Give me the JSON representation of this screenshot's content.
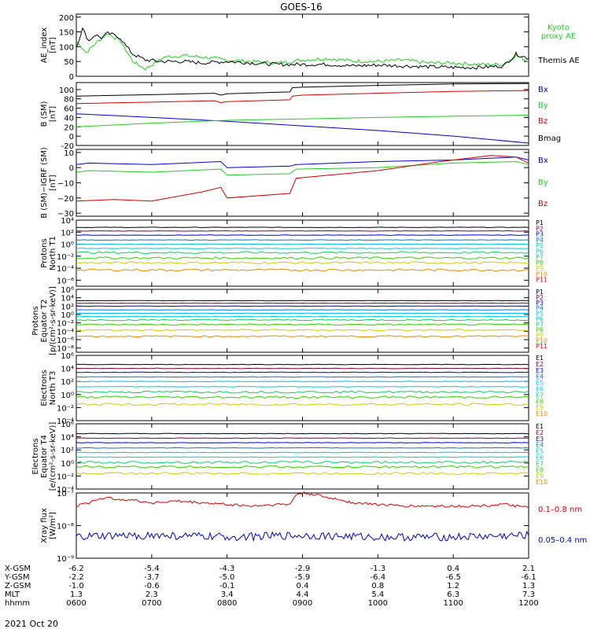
{
  "title": "GOES-16",
  "date_label": "2021 Oct 20",
  "colors": {
    "black": "#000000",
    "red": "#d00000",
    "green": "#22cc22",
    "blue": "#0000cc",
    "kyoto": "#22dd22",
    "xray_long": "#d00000",
    "xray_short": "#0000cc"
  },
  "channel_colors": {
    "P": [
      "#000000",
      "#800040",
      "#0000cc",
      "#0077dd",
      "#00bbee",
      "#00cccc",
      "#11cc66",
      "#33cc00",
      "#cccc00",
      "#ee8800",
      "#ff0000"
    ],
    "E": [
      "#000000",
      "#800040",
      "#0000cc",
      "#0077dd",
      "#00bbee",
      "#00cccc",
      "#11cc66",
      "#33cc00",
      "#cccc00",
      "#ee8800"
    ]
  },
  "bottom_axis": {
    "row_labels": [
      "X-GSM",
      "Y-GSM",
      "Z-GSM",
      "MLT",
      "hhmm"
    ],
    "columns": [
      {
        "t": 0,
        "values": [
          "-6.2",
          "-2.2",
          "-1.0",
          "1.3",
          "0600"
        ]
      },
      {
        "t": 60,
        "values": [
          "-5.4",
          "-3.7",
          "-0.6",
          "2.3",
          "0700"
        ]
      },
      {
        "t": 120,
        "values": [
          "-4.3",
          "-5.0",
          "-0.1",
          "3.4",
          "0800"
        ]
      },
      {
        "t": 180,
        "values": [
          "-2.9",
          "-5.9",
          "0.4",
          "4.4",
          "0900"
        ]
      },
      {
        "t": 240,
        "values": [
          "-1.3",
          "-6.4",
          "0.8",
          "5.4",
          "1000"
        ]
      },
      {
        "t": 300,
        "values": [
          "0.4",
          "-6.5",
          "1.2",
          "6.3",
          "1100"
        ]
      },
      {
        "t": 360,
        "values": [
          "2.1",
          "-6.1",
          "1.3",
          "7.3",
          "1200"
        ]
      }
    ]
  },
  "chart_data": [
    {
      "type": "line",
      "x_unit": "minutes since 0600 UT",
      "ylabel": [
        "AE_index",
        "[nT]"
      ],
      "log": false,
      "ylim": [
        0,
        210
      ],
      "yticks": [
        0,
        50,
        100,
        150,
        200
      ],
      "ytick_labels": [
        "0",
        "50",
        "100",
        "150",
        "200"
      ],
      "legend": [
        {
          "text": "Kyoto",
          "color": "green"
        },
        {
          "text": "proxy AE",
          "color": "green"
        },
        {
          "text": "Themis AE",
          "color": "black"
        }
      ],
      "series": [
        {
          "name": "Kyoto proxy AE",
          "color": "green",
          "x": [
            0,
            8,
            15,
            25,
            35,
            45,
            55,
            70,
            85,
            100,
            120,
            140,
            160,
            180,
            200,
            220,
            240,
            260,
            280,
            300,
            320,
            340,
            350,
            360
          ],
          "y": [
            120,
            80,
            110,
            145,
            120,
            50,
            25,
            65,
            70,
            65,
            55,
            50,
            45,
            55,
            60,
            52,
            50,
            55,
            45,
            45,
            40,
            40,
            70,
            50
          ]
        },
        {
          "name": "Themis AE",
          "color": "black",
          "x": [
            0,
            5,
            10,
            15,
            20,
            25,
            30,
            35,
            40,
            45,
            55,
            70,
            85,
            100,
            120,
            140,
            160,
            180,
            200,
            220,
            240,
            260,
            280,
            300,
            320,
            340,
            350,
            360
          ],
          "y": [
            100,
            160,
            120,
            140,
            130,
            145,
            140,
            130,
            100,
            75,
            55,
            50,
            50,
            45,
            50,
            45,
            40,
            40,
            40,
            35,
            38,
            35,
            32,
            30,
            30,
            35,
            75,
            60
          ]
        }
      ]
    },
    {
      "type": "line",
      "ylabel": [
        "B (SM)",
        "[nT]"
      ],
      "log": false,
      "ylim": [
        -20,
        115
      ],
      "yticks": [
        -20,
        0,
        20,
        40,
        60,
        80,
        100
      ],
      "ytick_labels": [
        "-20",
        "0",
        "20",
        "40",
        "60",
        "80",
        "100"
      ],
      "legend": [
        {
          "text": "Bx",
          "color": "blue"
        },
        {
          "text": "By",
          "color": "green"
        },
        {
          "text": "Bz",
          "color": "red"
        },
        {
          "text": "Bmag",
          "color": "black"
        }
      ],
      "series": [
        {
          "name": "Bx",
          "color": "blue",
          "x": [
            0,
            60,
            120,
            180,
            240,
            300,
            360
          ],
          "y": [
            48,
            40,
            32,
            22,
            12,
            0,
            -15
          ]
        },
        {
          "name": "By",
          "color": "green",
          "x": [
            0,
            60,
            120,
            180,
            240,
            300,
            360
          ],
          "y": [
            20,
            28,
            34,
            37,
            40,
            43,
            45
          ]
        },
        {
          "name": "Bz",
          "color": "red",
          "x": [
            0,
            60,
            110,
            115,
            120,
            170,
            172,
            180,
            240,
            300,
            360
          ],
          "y": [
            70,
            73,
            76,
            72,
            74,
            78,
            86,
            88,
            92,
            96,
            98
          ]
        },
        {
          "name": "Bmag",
          "color": "black",
          "x": [
            0,
            60,
            110,
            115,
            120,
            170,
            172,
            180,
            240,
            300,
            360
          ],
          "y": [
            86,
            89,
            92,
            88,
            91,
            95,
            104,
            105,
            109,
            112,
            113
          ]
        }
      ]
    },
    {
      "type": "line",
      "ylabel": [
        "B (SM)−IGRF (SM)",
        "[nT]"
      ],
      "log": false,
      "ylim": [
        -32,
        12
      ],
      "yticks": [
        -30,
        -20,
        -10,
        0,
        10
      ],
      "ytick_labels": [
        "−30",
        "−20",
        "−10",
        "0",
        "10"
      ],
      "legend": [
        {
          "text": "Bx",
          "color": "blue"
        },
        {
          "text": "By",
          "color": "green"
        },
        {
          "text": "Bz",
          "color": "red"
        }
      ],
      "series": [
        {
          "name": "Bx",
          "color": "blue",
          "x": [
            0,
            10,
            60,
            115,
            120,
            170,
            175,
            240,
            300,
            350,
            360
          ],
          "y": [
            2,
            3,
            2,
            4,
            0,
            1,
            2,
            4,
            5,
            7,
            5
          ]
        },
        {
          "name": "By",
          "color": "green",
          "x": [
            0,
            10,
            60,
            115,
            120,
            170,
            175,
            240,
            300,
            350,
            360
          ],
          "y": [
            -3,
            -2,
            -3,
            -1,
            -5,
            -4,
            -1,
            0,
            3,
            4,
            2
          ]
        },
        {
          "name": "Bz",
          "color": "red",
          "x": [
            0,
            30,
            60,
            100,
            115,
            120,
            170,
            175,
            240,
            290,
            330,
            350,
            360
          ],
          "y": [
            -22,
            -21,
            -22,
            -16,
            -13,
            -20,
            -17,
            -7,
            -2,
            4,
            8,
            7,
            3
          ]
        }
      ]
    },
    {
      "type": "line",
      "ylabel": [
        "Protons",
        "North T1"
      ],
      "log": true,
      "ylim": [
        -7,
        4
      ],
      "yticks": [
        -6,
        -4,
        -2,
        0,
        2,
        4
      ],
      "ytick_labels": [
        "10⁻⁶",
        "10⁻⁴",
        "10⁻²",
        "10⁰",
        "10²",
        "10⁴"
      ],
      "legend_codes": [
        "P1",
        "P2",
        "P3",
        "P4",
        "P5",
        "P6",
        "P7",
        "P8",
        "P9",
        "P10",
        "P11"
      ],
      "levels": [
        2.8,
        2.2,
        1.5,
        0.7,
        0.0,
        -0.7,
        -1.4,
        -2.3,
        -3.1,
        -4.3,
        -7
      ]
    },
    {
      "type": "line",
      "ylabel": [
        "Protons",
        "Equator T2",
        "[p/(cm²-s-sr-keV)]"
      ],
      "log": true,
      "ylim": [
        -9,
        6
      ],
      "yticks": [
        -8,
        -6,
        -4,
        -2,
        0,
        2,
        4,
        6
      ],
      "ytick_labels": [
        "10⁻⁸",
        "10⁻⁶",
        "10⁻⁴",
        "10⁻²",
        "10⁰",
        "10²",
        "10⁴",
        "10⁶"
      ],
      "legend_codes": [
        "P1",
        "P2",
        "P3",
        "P4",
        "P5",
        "P6",
        "P7",
        "P8",
        "P9",
        "P10",
        "P11"
      ],
      "levels": [
        3.3,
        2.7,
        2.0,
        1.1,
        0.3,
        -0.5,
        -1.3,
        -2.4,
        -3.7,
        -5.2,
        -9
      ]
    },
    {
      "type": "line",
      "ylabel": [
        "Electrons",
        "North T3"
      ],
      "log": true,
      "ylim": [
        -4,
        6
      ],
      "yticks": [
        -4,
        -2,
        0,
        2,
        4,
        6
      ],
      "ytick_labels": [
        "10⁻⁴",
        "10⁻²",
        "10⁰",
        "10²",
        "10⁴",
        "10⁶"
      ],
      "legend_codes": [
        "E1",
        "E2",
        "E3",
        "E4",
        "E5",
        "E6",
        "E7",
        "E8",
        "E9",
        "E10"
      ],
      "levels": [
        4.6,
        4.0,
        3.4,
        2.7,
        2.0,
        1.2,
        0.4,
        -0.4,
        -1.5,
        -4
      ]
    },
    {
      "type": "line",
      "ylabel": [
        "Electrons",
        "Equator T4",
        "[e/(cm²-s-sr-keV)]"
      ],
      "log": true,
      "ylim": [
        -4,
        6
      ],
      "yticks": [
        -4,
        -2,
        0,
        2,
        4,
        6
      ],
      "ytick_labels": [
        "10⁻⁴",
        "10⁻²",
        "10⁰",
        "10²",
        "10⁴",
        "10⁶"
      ],
      "legend_codes": [
        "E1",
        "E2",
        "E3",
        "E4",
        "E5",
        "E6",
        "E7",
        "E8",
        "E9",
        "E10"
      ],
      "levels": [
        4.5,
        3.8,
        3.1,
        2.3,
        1.6,
        0.9,
        0.1,
        -0.6,
        -1.6,
        -4
      ]
    },
    {
      "type": "line",
      "ylabel": [
        "Xray flux",
        "[W/m²]"
      ],
      "log": true,
      "ylim": [
        -9,
        -7
      ],
      "yticks": [
        -9,
        -8,
        -7
      ],
      "ytick_labels": [
        "10⁻⁹",
        "10⁻⁸",
        "10⁻⁷"
      ],
      "legend": [
        {
          "text": "0.1–0.8 nm",
          "color": "xray_long"
        },
        {
          "text": "0.05–0.4 nm",
          "color": "xray_short"
        }
      ],
      "series": [
        {
          "name": "0.1-0.8 nm",
          "color": "xray_long",
          "x": [
            0,
            10,
            20,
            40,
            60,
            80,
            100,
            120,
            140,
            160,
            170,
            175,
            180,
            190,
            200,
            210,
            220,
            240,
            260,
            280,
            300,
            320,
            340,
            360
          ],
          "y": [
            -7.4,
            -7.3,
            -7.15,
            -7.2,
            -7.3,
            -7.25,
            -7.3,
            -7.35,
            -7.4,
            -7.35,
            -7.35,
            -7.05,
            -7.0,
            -7.05,
            -7.15,
            -7.2,
            -7.3,
            -7.35,
            -7.4,
            -7.4,
            -7.4,
            -7.4,
            -7.35,
            -7.45
          ]
        },
        {
          "name": "0.05-0.4 nm",
          "color": "xray_short",
          "x": [
            0,
            60,
            120,
            180,
            240,
            300,
            360
          ],
          "y": [
            -8.35,
            -8.3,
            -8.35,
            -8.3,
            -8.35,
            -8.35,
            -8.3
          ]
        }
      ]
    }
  ]
}
